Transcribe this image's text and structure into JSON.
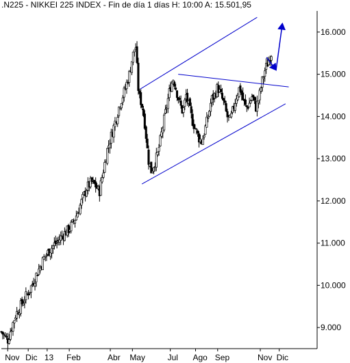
{
  "header": {
    "symbol": ".N225",
    "name": "NIKKEI 225 INDEX",
    "info": "Fin de día 1 días",
    "h_label": "H:",
    "h_value": "10:00",
    "a_label": "A:",
    "a_value": "15.501,95"
  },
  "chart_data": {
    "type": "candlestick",
    "title": ".N225 - NIKKEI 225 INDEX - Fin de día 1 días  H: 10:00  A: 15.501,95",
    "ylim": [
      8500,
      16500
    ],
    "yticks": [
      {
        "value": 9000,
        "label": "9.000"
      },
      {
        "value": 10000,
        "label": "10.000"
      },
      {
        "value": 11000,
        "label": "11.000"
      },
      {
        "value": 12000,
        "label": "12.000"
      },
      {
        "value": 13000,
        "label": "13.000"
      },
      {
        "value": 14000,
        "label": "14.000"
      },
      {
        "value": 15000,
        "label": "15.000"
      },
      {
        "value": 16000,
        "label": "16.000"
      }
    ],
    "xticks": [
      {
        "t": 0.02,
        "label": "Nov"
      },
      {
        "t": 0.085,
        "label": "Dic"
      },
      {
        "t": 0.145,
        "label": "13"
      },
      {
        "t": 0.215,
        "label": "Feb"
      },
      {
        "t": 0.345,
        "label": "Abr"
      },
      {
        "t": 0.415,
        "label": "May"
      },
      {
        "t": 0.535,
        "label": "Jul"
      },
      {
        "t": 0.615,
        "label": "Ago"
      },
      {
        "t": 0.685,
        "label": "Sep"
      },
      {
        "t": 0.82,
        "label": "Nov"
      },
      {
        "t": 0.88,
        "label": "Dic"
      }
    ],
    "price_path": [
      [
        0.0,
        8900
      ],
      [
        0.01,
        8800
      ],
      [
        0.02,
        8700
      ],
      [
        0.03,
        8950
      ],
      [
        0.045,
        9300
      ],
      [
        0.06,
        9500
      ],
      [
        0.075,
        9700
      ],
      [
        0.09,
        9900
      ],
      [
        0.105,
        10150
      ],
      [
        0.12,
        10400
      ],
      [
        0.135,
        10650
      ],
      [
        0.15,
        10800
      ],
      [
        0.165,
        10950
      ],
      [
        0.18,
        11050
      ],
      [
        0.195,
        11200
      ],
      [
        0.21,
        11300
      ],
      [
        0.225,
        11450
      ],
      [
        0.24,
        11700
      ],
      [
        0.255,
        12000
      ],
      [
        0.27,
        12300
      ],
      [
        0.285,
        12450
      ],
      [
        0.3,
        12350
      ],
      [
        0.31,
        12200
      ],
      [
        0.32,
        12600
      ],
      [
        0.335,
        13200
      ],
      [
        0.35,
        13600
      ],
      [
        0.365,
        14000
      ],
      [
        0.375,
        14300
      ],
      [
        0.39,
        14600
      ],
      [
        0.405,
        15000
      ],
      [
        0.415,
        15400
      ],
      [
        0.425,
        15700
      ],
      [
        0.435,
        14500
      ],
      [
        0.445,
        14300
      ],
      [
        0.455,
        13800
      ],
      [
        0.465,
        13000
      ],
      [
        0.475,
        12700
      ],
      [
        0.485,
        12900
      ],
      [
        0.495,
        13100
      ],
      [
        0.505,
        13500
      ],
      [
        0.515,
        13900
      ],
      [
        0.525,
        14300
      ],
      [
        0.535,
        14700
      ],
      [
        0.545,
        14900
      ],
      [
        0.555,
        14600
      ],
      [
        0.565,
        14300
      ],
      [
        0.575,
        14100
      ],
      [
        0.585,
        14500
      ],
      [
        0.595,
        14200
      ],
      [
        0.605,
        13900
      ],
      [
        0.615,
        13700
      ],
      [
        0.625,
        13500
      ],
      [
        0.635,
        13400
      ],
      [
        0.645,
        13700
      ],
      [
        0.655,
        14000
      ],
      [
        0.665,
        14400
      ],
      [
        0.675,
        14500
      ],
      [
        0.685,
        14700
      ],
      [
        0.695,
        14500
      ],
      [
        0.705,
        14300
      ],
      [
        0.715,
        14000
      ],
      [
        0.725,
        13900
      ],
      [
        0.735,
        14200
      ],
      [
        0.745,
        14500
      ],
      [
        0.755,
        14700
      ],
      [
        0.765,
        14400
      ],
      [
        0.775,
        14200
      ],
      [
        0.785,
        14300
      ],
      [
        0.795,
        14500
      ],
      [
        0.805,
        14200
      ],
      [
        0.815,
        14400
      ],
      [
        0.825,
        14800
      ],
      [
        0.835,
        15100
      ],
      [
        0.845,
        15300
      ],
      [
        0.855,
        15500
      ]
    ],
    "trendlines": [
      {
        "from": [
          0.44,
          14650
        ],
        "to": [
          0.81,
          16350
        ]
      },
      {
        "from": [
          0.445,
          12400
        ],
        "to": [
          0.9,
          14300
        ]
      },
      {
        "from": [
          0.56,
          15000
        ],
        "to": [
          0.91,
          14700
        ]
      }
    ],
    "projection_arrows": [
      {
        "from": [
          0.84,
          15400
        ],
        "to": [
          0.87,
          15100
        ]
      },
      {
        "from": [
          0.87,
          15100
        ],
        "to": [
          0.89,
          16200
        ]
      }
    ],
    "colors": {
      "bull": "#000000",
      "bear": "#000000",
      "line": "#0000cc",
      "grid": "#ffffff"
    }
  }
}
